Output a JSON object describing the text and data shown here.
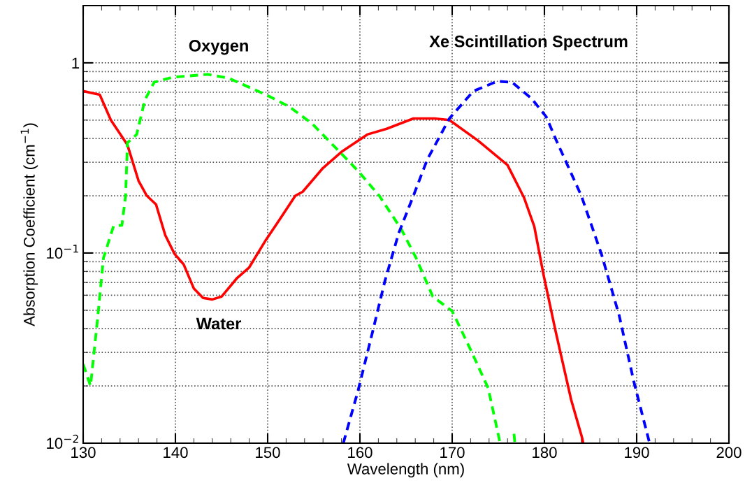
{
  "chart_data": {
    "type": "line",
    "xlabel": "Wavelength (nm)",
    "ylabel": "Absorption Coefficient (cm$^{−1}$)",
    "log": "y",
    "grid": true,
    "xlim": [
      130,
      200
    ],
    "xticks": [
      130,
      140,
      150,
      160,
      170,
      180,
      190,
      200
    ],
    "ylim": [
      0.01,
      2
    ],
    "yticks": [
      {
        "value": 0.01,
        "label": "10$^{−2}$"
      },
      {
        "value": 0.1,
        "label": "10$^{−1}$"
      },
      1
    ],
    "series": [
      {
        "name": "Water",
        "color": "#ff0000",
        "line_style": "solid",
        "x": [
          130,
          131.8,
          133,
          134.8,
          136,
          136.9,
          137.9,
          138.9,
          139.9,
          140.9,
          142,
          143,
          144,
          145,
          146.7,
          148,
          149.8,
          151.3,
          153,
          153.8,
          156,
          158,
          160.8,
          162.9,
          165.8,
          168.1,
          169.7,
          172.8,
          176,
          177.8,
          178.9,
          179.9,
          181.2,
          182.9,
          184.1,
          184.2
        ],
        "values": [
          0.71,
          0.68,
          0.5,
          0.37,
          0.24,
          0.2,
          0.18,
          0.124,
          0.099,
          0.087,
          0.065,
          0.058,
          0.057,
          0.059,
          0.074,
          0.084,
          0.117,
          0.15,
          0.2,
          0.21,
          0.28,
          0.34,
          0.42,
          0.45,
          0.51,
          0.51,
          0.5,
          0.39,
          0.29,
          0.195,
          0.138,
          0.077,
          0.039,
          0.0169,
          0.0106,
          0.01
        ]
      },
      {
        "name": "Oxygen",
        "color": "#00ff00",
        "line_style": "dashed",
        "x": [
          130,
          130.8,
          131.6,
          132.2,
          133.3,
          134.2,
          134.6,
          134.8,
          135.8,
          136.7,
          137.7,
          139.7,
          143.5,
          145.8,
          149.8,
          152.3,
          154.8,
          158.9,
          159.8,
          162.1,
          164.5,
          166.1,
          167.9,
          170,
          172,
          173.9,
          175.2,
          176,
          176.7,
          176.8
        ],
        "values": [
          0.026,
          0.02,
          0.047,
          0.094,
          0.139,
          0.14,
          0.2,
          0.38,
          0.42,
          0.64,
          0.79,
          0.84,
          0.87,
          0.83,
          0.68,
          0.59,
          0.48,
          0.3,
          0.27,
          0.2,
          0.133,
          0.094,
          0.059,
          0.0495,
          0.031,
          0.0195,
          0.01,
          null,
          0.0112,
          0.01
        ]
      },
      {
        "name": "Xe Scintillation Spectrum",
        "color": "#0000ff",
        "line_style": "dashed",
        "x": [
          158.2,
          159.8,
          161.4,
          162.7,
          164.2,
          165.8,
          167.3,
          169.7,
          172.3,
          174.9,
          176.5,
          178.6,
          180.2,
          181.3,
          184,
          186.2,
          188.1,
          189.7,
          191.4
        ],
        "values": [
          0.01,
          0.0189,
          0.039,
          0.071,
          0.127,
          0.2,
          0.31,
          0.51,
          0.71,
          0.8,
          0.79,
          0.65,
          0.52,
          0.39,
          0.2,
          0.098,
          0.047,
          0.021,
          0.01
        ]
      }
    ]
  }
}
